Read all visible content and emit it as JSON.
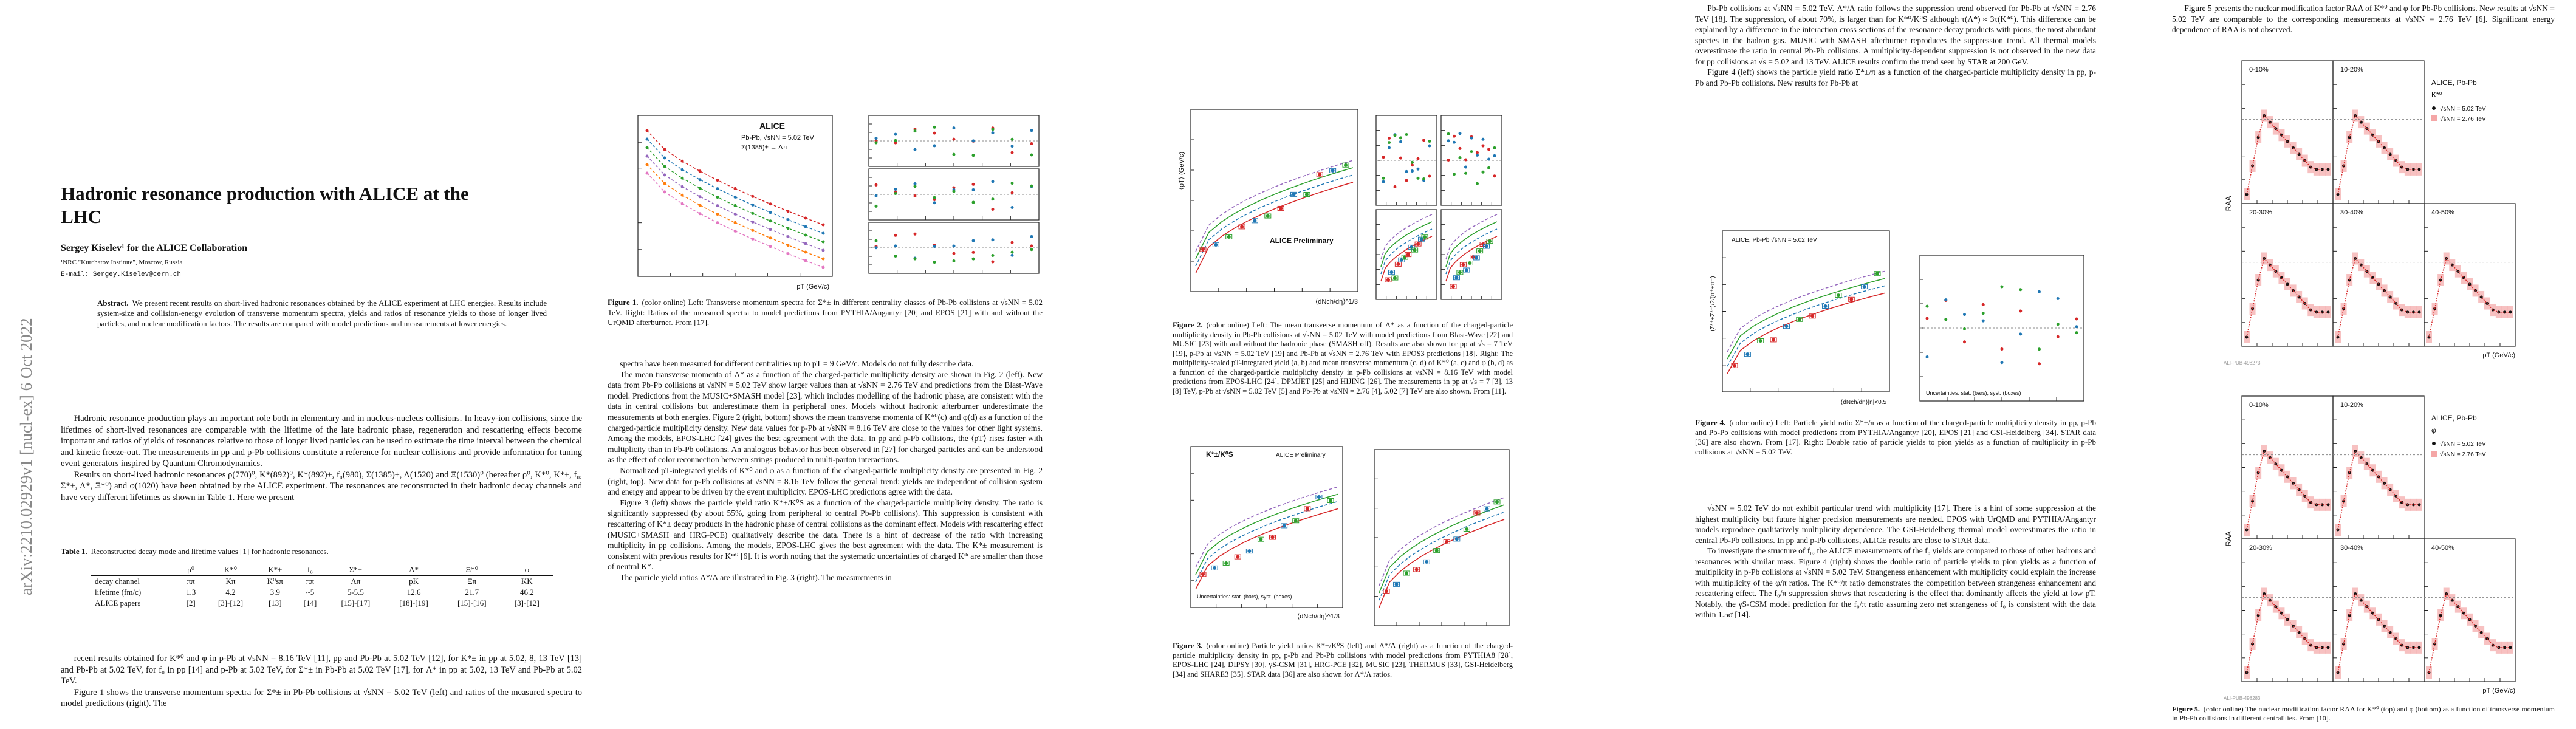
{
  "page1": {
    "stamp": "arXiv:2210.02929v1  [nucl-ex]  6 Oct 2022",
    "title": "Hadronic resonance production with ALICE at the LHC",
    "author": "Sergey Kiselev¹ for the ALICE Collaboration",
    "affiliation": "¹NRC \"Kurchatov Institute\", Moscow, Russia",
    "email": "E-mail: Sergey.Kiselev@cern.ch",
    "abstract_label": "Abstract.",
    "abstract": "We present recent results on short-lived hadronic resonances obtained by the ALICE experiment at LHC energies. Results include system-size and collision-energy evolution of transverse momentum spectra, yields and ratios of resonance yields to those of longer lived particles, and nuclear modification factors. The results are compared with model predictions and measurements at lower energies.",
    "paragraphs": [
      "Hadronic resonance production plays an important role both in elementary and in nucleus-nucleus collisions. In heavy-ion collisions, since the lifetimes of short-lived resonances are comparable with the lifetime of the late hadronic phase, regeneration and rescattering effects become important and ratios of yields of resonances relative to those of longer lived particles can be used to estimate the time interval between the chemical and kinetic freeze-out. The measurements in pp and p-Pb collisions constitute a reference for nuclear collisions and provide information for tuning event generators inspired by Quantum Chromodynamics.",
      "Results on short-lived hadronic resonances ρ(770)⁰, K*(892)⁰, K*(892)±, f₀(980), Σ(1385)±, Λ(1520) and Ξ(1530)⁰ (hereafter ρ⁰, K*⁰, K*±, f₀, Σ*±, Λ*, Ξ*⁰) and φ(1020) have been obtained by the ALICE experiment. The resonances are reconstructed in their hadronic decay channels and have very different lifetimes as shown in Table 1. Here we present"
    ],
    "table": {
      "label": "Table 1.",
      "caption": "Reconstructed decay mode and lifetime values [1] for hadronic resonances.",
      "header": [
        "",
        "ρ⁰",
        "K*⁰",
        "K*±",
        "f₀",
        "Σ*±",
        "Λ*",
        "Ξ*⁰",
        "φ"
      ],
      "rows": [
        [
          "decay channel",
          "ππ",
          "Kπ",
          "K⁰sπ",
          "ππ",
          "Λπ",
          "pK",
          "Ξπ",
          "KK"
        ],
        [
          "lifetime (fm/c)",
          "1.3",
          "4.2",
          "3.9",
          "~5",
          "5-5.5",
          "12.6",
          "21.7",
          "46.2"
        ],
        [
          "ALICE papers",
          "[2]",
          "[3]-[12]",
          "[13]",
          "[14]",
          "[15]-[17]",
          "[18]-[19]",
          "[15]-[16]",
          "[3]-[12]"
        ]
      ]
    },
    "paragraphs_after": [
      "recent results obtained for K*⁰ and φ in p-Pb at √sNN = 8.16 TeV [11], pp and Pb-Pb at 5.02 TeV [12], for K*± in pp at 5.02, 8, 13 TeV [13] and Pb-Pb at 5.02 TeV, for f₀ in pp [14] and p-Pb at 5.02 TeV, for Σ*± in Pb-Pb at 5.02 TeV [17], for Λ* in pp at 5.02, 13 TeV and Pb-Pb at 5.02 TeV.",
      "Figure 1 shows the transverse momentum spectra for Σ*± in Pb-Pb collisions at √sNN = 5.02 TeV (left) and ratios of the measured spectra to model predictions (right). The"
    ]
  },
  "page2": {
    "figure": {
      "label": "Figure 1.",
      "caption": "(color online) Left: Transverse momentum spectra for Σ*± in different centrality classes of Pb-Pb collisions at √sNN = 5.02 TeV. Right: Ratios of the measured spectra to model predictions from PYTHIA/Angantyr [20] and EPOS [21] with and without the UrQMD afterburner. From [17].",
      "labels": [
        "ALICE",
        "Pb-Pb, √sNN = 5.02 TeV",
        "Σ(1385)± → Λπ",
        "pT (GeV/c)"
      ]
    },
    "paragraphs": [
      "spectra have been measured for different centralities up to pT = 9 GeV/c. Models do not fully describe data.",
      "The mean transverse momenta of Λ* as a function of the charged-particle multiplicity density are shown in Fig. 2 (left). New data from Pb-Pb collisions at √sNN = 5.02 TeV show larger values than at √sNN = 2.76 TeV and predictions from the Blast-Wave model. Predictions from the MUSIC+SMASH model [23], which includes modelling of the hadronic phase, are consistent with the data in central collisions but underestimate them in peripheral ones. Models without hadronic afterburner underestimate the measurements at both energies. Figure 2 (right, bottom) shows the mean transverse momenta of K*⁰(c) and φ(d) as a function of the charged-particle multiplicity density. New data values for p-Pb at √sNN = 8.16 TeV are close to the values for other light systems. Among the models, EPOS-LHC [24] gives the best agreement with the data. In pp and p-Pb collisions, the ⟨pT⟩ rises faster with multiplicity than in Pb-Pb collisions. An analogous behavior has been observed in [27] for charged particles and can be understood as the effect of color reconnection between strings produced in multi-parton interactions.",
      "Normalized pT-integrated yields of K*⁰ and φ as a function of the charged-particle multiplicity density are presented in Fig. 2 (right, top). New data for p-Pb collisions at √sNN = 8.16 TeV follow the general trend: yields are independent of collision system and energy and appear to be driven by the event multiplicity. EPOS-LHC predictions agree with the data.",
      "Figure 3 (left) shows the particle yield ratio K*±/K⁰S as a function of the charged-particle multiplicity density. The ratio is significantly suppressed (by about 55%, going from peripheral to central Pb-Pb collisions). This suppression is consistent with rescattering of K*± decay products in the hadronic phase of central collisions as the dominant effect. Models with rescattering effect (MUSIC+SMASH and HRG-PCE) qualitatively describe the data. There is a hint of decrease of the ratio with increasing multiplicity in pp collisions. Among the models, EPOS-LHC gives the best agreement with the data. The K*± measurement is consistent with previous results for K*⁰ [6]. It is worth noting that the systematic uncertainties of charged K* are smaller than those of neutral K*.",
      "The particle yield ratios Λ*/Λ are illustrated in Fig. 3 (right). The measurements in"
    ]
  },
  "page3": {
    "figures": [
      {
        "label": "Figure 2.",
        "caption": "(color online) Left: The mean transverse momentum of Λ* as a function of the charged-particle multiplicity density in Pb-Pb collisions at √sNN = 5.02 TeV with model predictions from Blast-Wave [22] and MUSIC [23] with and without the hadronic phase (SMASH off). Results are also shown for pp at √s = 7 TeV [19], p-Pb at √sNN = 5.02 TeV [19] and Pb-Pb at √sNN = 2.76 TeV with EPOS3 predictions [18]. Right: The multiplicity-scaled pT-integrated yield (a, b) and mean transverse momentum (c, d) of K*⁰ (a, c) and φ (b, d) as a function of the charged-particle multiplicity density in p-Pb collisions at √sNN = 8.16 TeV with model predictions from EPOS-LHC [24], DPMJET [25] and HIJING [26]. The measurements in pp at √s = 7 [3], 13 [8] TeV, p-Pb at √sNN = 5.02 TeV [5] and Pb-Pb at √sNN = 2.76 [4], 5.02 [7] TeV are also shown. From [11].",
        "labels": [
          "ALICE Preliminary",
          "⟨dNch/dη⟩^1/3",
          "⟨pT⟩ (GeV/c)"
        ]
      },
      {
        "label": "Figure 3.",
        "caption": "(color online) Particle yield ratios K*±/K⁰S (left) and Λ*/Λ (right) as a function of the charged-particle multiplicity density in pp, p-Pb and Pb-Pb collisions with model predictions from PYTHIA8 [28], EPOS-LHC [24], DIPSY [30], γS-CSM [31], HRG-PCE [32], MUSIC [23], THERMUS [33], GSI-Heidelberg [34] and SHARE3 [35]. STAR data [36] are also shown for Λ*/Λ ratios.",
        "labels": [
          "K*±/K⁰S",
          "ALICE Preliminary",
          "⟨dNch/dη⟩^1/3",
          "Uncertainties: stat. (bars), syst. (boxes)"
        ]
      }
    ]
  },
  "page4": {
    "paragraphs_top": [
      "Pb-Pb collisions at √sNN = 5.02 TeV. Λ*/Λ ratio follows the suppression trend observed for Pb-Pb at √sNN = 2.76 TeV [18]. The suppression, of about 70%, is larger than for K*⁰/K⁰S although τ(Λ*) ≈ 3τ(K*⁰). This difference can be explained by a difference in the interaction cross sections of the resonance decay products with pions, the most abundant species in the hadron gas. MUSIC with SMASH afterburner reproduces the suppression trend. All thermal models overestimate the ratio in central Pb-Pb collisions. A multiplicity-dependent suppression is not observed in the new data for pp collisions at √s = 5.02 and 13 TeV. ALICE results confirm the trend seen by STAR at 200 GeV.",
      "Figure 4 (left) shows the particle yield ratio Σ*±/π as a function of the charged-particle multiplicity density in pp, p-Pb and Pb-Pb collisions. New results for Pb-Pb at"
    ],
    "figure": {
      "label": "Figure 4.",
      "caption": "(color online) Left: Particle yield ratio Σ*±/π as a function of the charged-particle multiplicity density in pp, p-Pb and Pb-Pb collisions with model predictions from PYTHIA/Angantyr [20], EPOS [21] and GSI-Heidelberg [34]. STAR data [36] are also shown. From [17]. Right: Double ratio of particle yields to pion yields as a function of multiplicity in p-Pb collisions at √sNN = 5.02 TeV.",
      "labels": [
        "(Σ*⁺+Σ*⁻)/2/(π⁺+π⁻)",
        "ALICE, Pb-Pb √sNN = 5.02 TeV",
        "⟨dNch/dη⟩|η|<0.5",
        "Uncertainties: stat. (bars), syst. (boxes)"
      ]
    },
    "paragraphs_bottom": [
      "√sNN = 5.02 TeV do not exhibit particular trend with multiplicity [17]. There is a hint of some suppression at the highest multiplicity but future higher precision measurements are needed. EPOS with UrQMD and PYTHIA/Angantyr models reproduce qualitatively multiplicity dependence. The GSI-Heidelberg thermal model overestimates the ratio in central Pb-Pb collisions. In pp and p-Pb collisions, ALICE results are close to STAR data.",
      "To investigate the structure of f₀, the ALICE measurements of the f₀ yields are compared to those of other hadrons and resonances with similar mass. Figure 4 (right) shows the double ratio of particle yields to pion yields as a function of multiplicity in p-Pb collisions at √sNN = 5.02 TeV. Strangeness enhancement with multiplicity could explain the increase with multiplicity of the φ/π ratios. The K*⁰/π ratio demonstrates the competition between strangeness enhancement and rescattering effect. The f₀/π suppression shows that rescattering is the effect that dominantly affects the yield at low pT. Notably, the γS-CSM model prediction for the f₀/π ratio assuming zero net strangeness of f₀ is consistent with the data within 1.5σ [14]."
    ]
  },
  "page5": {
    "paragraphs_top": [
      "Figure 5 presents the nuclear modification factor RAA of K*⁰ and φ for Pb-Pb collisions. New results at √sNN = 5.02 TeV are comparable to the corresponding measurements at √sNN = 2.76 TeV [6]. Significant energy dependence of RAA is not observed."
    ],
    "figure": {
      "label": "Figure 5.",
      "caption": "(color online) The nuclear modification factor RAA for K*⁰ (top) and φ (bottom) as a function of transverse momentum in Pb-Pb collisions in different centralities. From [10].",
      "centralities": [
        "0-10%",
        "10-20%",
        "20-30%",
        "30-40%",
        "40-50%"
      ],
      "legend_title": "ALICE, Pb-Pb",
      "particles": [
        "K*⁰",
        "φ"
      ],
      "energies": [
        "√sNN = 5.02 TeV",
        "√sNN = 2.76 TeV"
      ],
      "y_label": "RAA",
      "x_label": "pT (GeV/c)",
      "ids": [
        "ALI-PUB-498273",
        "ALI-PUB-498283"
      ]
    }
  }
}
